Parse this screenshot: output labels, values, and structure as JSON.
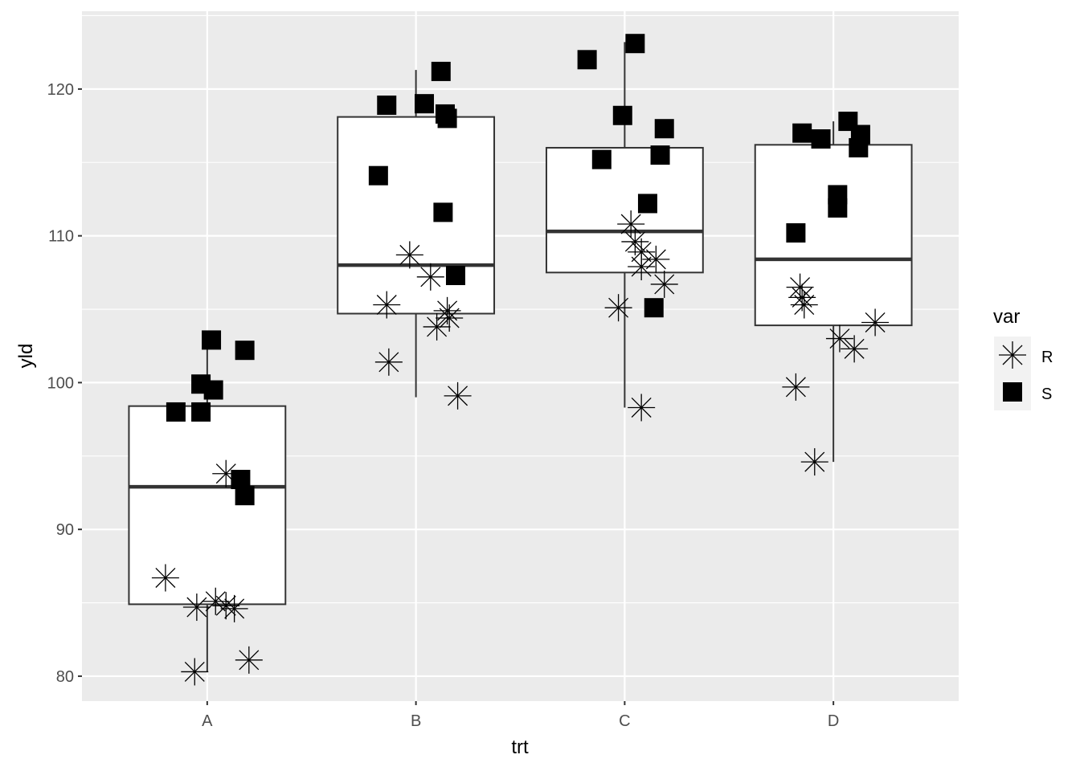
{
  "chart_data": {
    "type": "boxplot",
    "title": "",
    "xlabel": "trt",
    "ylabel": "yld",
    "categories": [
      "A",
      "B",
      "C",
      "D"
    ],
    "ylim": [
      78.3,
      125.3
    ],
    "yticks": [
      80,
      90,
      100,
      110,
      120
    ],
    "grid": true,
    "legend": {
      "title": "var",
      "position": "right",
      "entries": [
        {
          "label": "R",
          "shape": "asterisk"
        },
        {
          "label": "S",
          "shape": "filled-square"
        }
      ]
    },
    "boxes": [
      {
        "category": "A",
        "lower_whisker": 80.3,
        "q1": 84.9,
        "median": 92.9,
        "q3": 98.4,
        "upper_whisker": 102.9
      },
      {
        "category": "B",
        "lower_whisker": 99.0,
        "q1": 104.7,
        "median": 108.0,
        "q3": 118.1,
        "upper_whisker": 121.3
      },
      {
        "category": "C",
        "lower_whisker": 98.3,
        "q1": 107.5,
        "median": 110.3,
        "q3": 116.0,
        "upper_whisker": 123.2
      },
      {
        "category": "D",
        "lower_whisker": 94.6,
        "q1": 103.9,
        "median": 108.4,
        "q3": 116.2,
        "upper_whisker": 117.8
      }
    ],
    "series": [
      {
        "name": "R",
        "points": [
          {
            "category": "A",
            "x": 0.8,
            "y": 86.7
          },
          {
            "category": "A",
            "x": 0.95,
            "y": 84.7
          },
          {
            "category": "A",
            "x": 1.04,
            "y": 85.1
          },
          {
            "category": "A",
            "x": 1.09,
            "y": 84.8
          },
          {
            "category": "A",
            "x": 1.13,
            "y": 84.6
          },
          {
            "category": "A",
            "x": 0.94,
            "y": 80.3
          },
          {
            "category": "A",
            "x": 1.2,
            "y": 81.1
          },
          {
            "category": "A",
            "x": 1.09,
            "y": 93.8
          },
          {
            "category": "B",
            "x": 1.86,
            "y": 105.3
          },
          {
            "category": "B",
            "x": 1.97,
            "y": 108.7
          },
          {
            "category": "B",
            "x": 2.07,
            "y": 107.2
          },
          {
            "category": "B",
            "x": 2.1,
            "y": 103.8
          },
          {
            "category": "B",
            "x": 2.15,
            "y": 104.9
          },
          {
            "category": "B",
            "x": 2.16,
            "y": 104.4
          },
          {
            "category": "B",
            "x": 1.87,
            "y": 101.4
          },
          {
            "category": "B",
            "x": 2.2,
            "y": 99.1
          },
          {
            "category": "C",
            "x": 2.97,
            "y": 105.1
          },
          {
            "category": "C",
            "x": 3.03,
            "y": 110.8
          },
          {
            "category": "C",
            "x": 3.05,
            "y": 109.6
          },
          {
            "category": "C",
            "x": 3.08,
            "y": 108.9
          },
          {
            "category": "C",
            "x": 3.08,
            "y": 107.9
          },
          {
            "category": "C",
            "x": 3.15,
            "y": 108.4
          },
          {
            "category": "C",
            "x": 3.19,
            "y": 106.7
          },
          {
            "category": "C",
            "x": 3.08,
            "y": 98.3
          },
          {
            "category": "D",
            "x": 3.84,
            "y": 106.5
          },
          {
            "category": "D",
            "x": 3.85,
            "y": 105.8
          },
          {
            "category": "D",
            "x": 3.86,
            "y": 105.3
          },
          {
            "category": "D",
            "x": 4.03,
            "y": 103.0
          },
          {
            "category": "D",
            "x": 4.1,
            "y": 102.3
          },
          {
            "category": "D",
            "x": 4.2,
            "y": 104.1
          },
          {
            "category": "D",
            "x": 3.82,
            "y": 99.7
          },
          {
            "category": "D",
            "x": 3.91,
            "y": 94.6
          }
        ]
      },
      {
        "name": "S",
        "points": [
          {
            "category": "A",
            "x": 0.85,
            "y": 98.0
          },
          {
            "category": "A",
            "x": 0.97,
            "y": 98.0
          },
          {
            "category": "A",
            "x": 0.97,
            "y": 99.9
          },
          {
            "category": "A",
            "x": 1.03,
            "y": 99.5
          },
          {
            "category": "A",
            "x": 1.02,
            "y": 102.9
          },
          {
            "category": "A",
            "x": 1.18,
            "y": 102.2
          },
          {
            "category": "A",
            "x": 1.16,
            "y": 93.4
          },
          {
            "category": "A",
            "x": 1.18,
            "y": 92.3
          },
          {
            "category": "B",
            "x": 1.82,
            "y": 114.1
          },
          {
            "category": "B",
            "x": 1.86,
            "y": 118.9
          },
          {
            "category": "B",
            "x": 2.04,
            "y": 119.0
          },
          {
            "category": "B",
            "x": 2.12,
            "y": 121.2
          },
          {
            "category": "B",
            "x": 2.14,
            "y": 118.3
          },
          {
            "category": "B",
            "x": 2.15,
            "y": 118.0
          },
          {
            "category": "B",
            "x": 2.13,
            "y": 111.6
          },
          {
            "category": "B",
            "x": 2.19,
            "y": 107.3
          },
          {
            "category": "C",
            "x": 2.82,
            "y": 122.0
          },
          {
            "category": "C",
            "x": 3.05,
            "y": 123.1
          },
          {
            "category": "C",
            "x": 2.99,
            "y": 118.2
          },
          {
            "category": "C",
            "x": 2.89,
            "y": 115.2
          },
          {
            "category": "C",
            "x": 3.19,
            "y": 117.3
          },
          {
            "category": "C",
            "x": 3.17,
            "y": 115.5
          },
          {
            "category": "C",
            "x": 3.11,
            "y": 112.2
          },
          {
            "category": "C",
            "x": 3.14,
            "y": 105.1
          },
          {
            "category": "D",
            "x": 3.85,
            "y": 117.0
          },
          {
            "category": "D",
            "x": 3.94,
            "y": 116.6
          },
          {
            "category": "D",
            "x": 4.07,
            "y": 117.8
          },
          {
            "category": "D",
            "x": 4.13,
            "y": 116.9
          },
          {
            "category": "D",
            "x": 4.12,
            "y": 116.0
          },
          {
            "category": "D",
            "x": 4.02,
            "y": 112.8
          },
          {
            "category": "D",
            "x": 4.02,
            "y": 111.9
          },
          {
            "category": "D",
            "x": 3.82,
            "y": 110.2
          }
        ]
      }
    ]
  }
}
